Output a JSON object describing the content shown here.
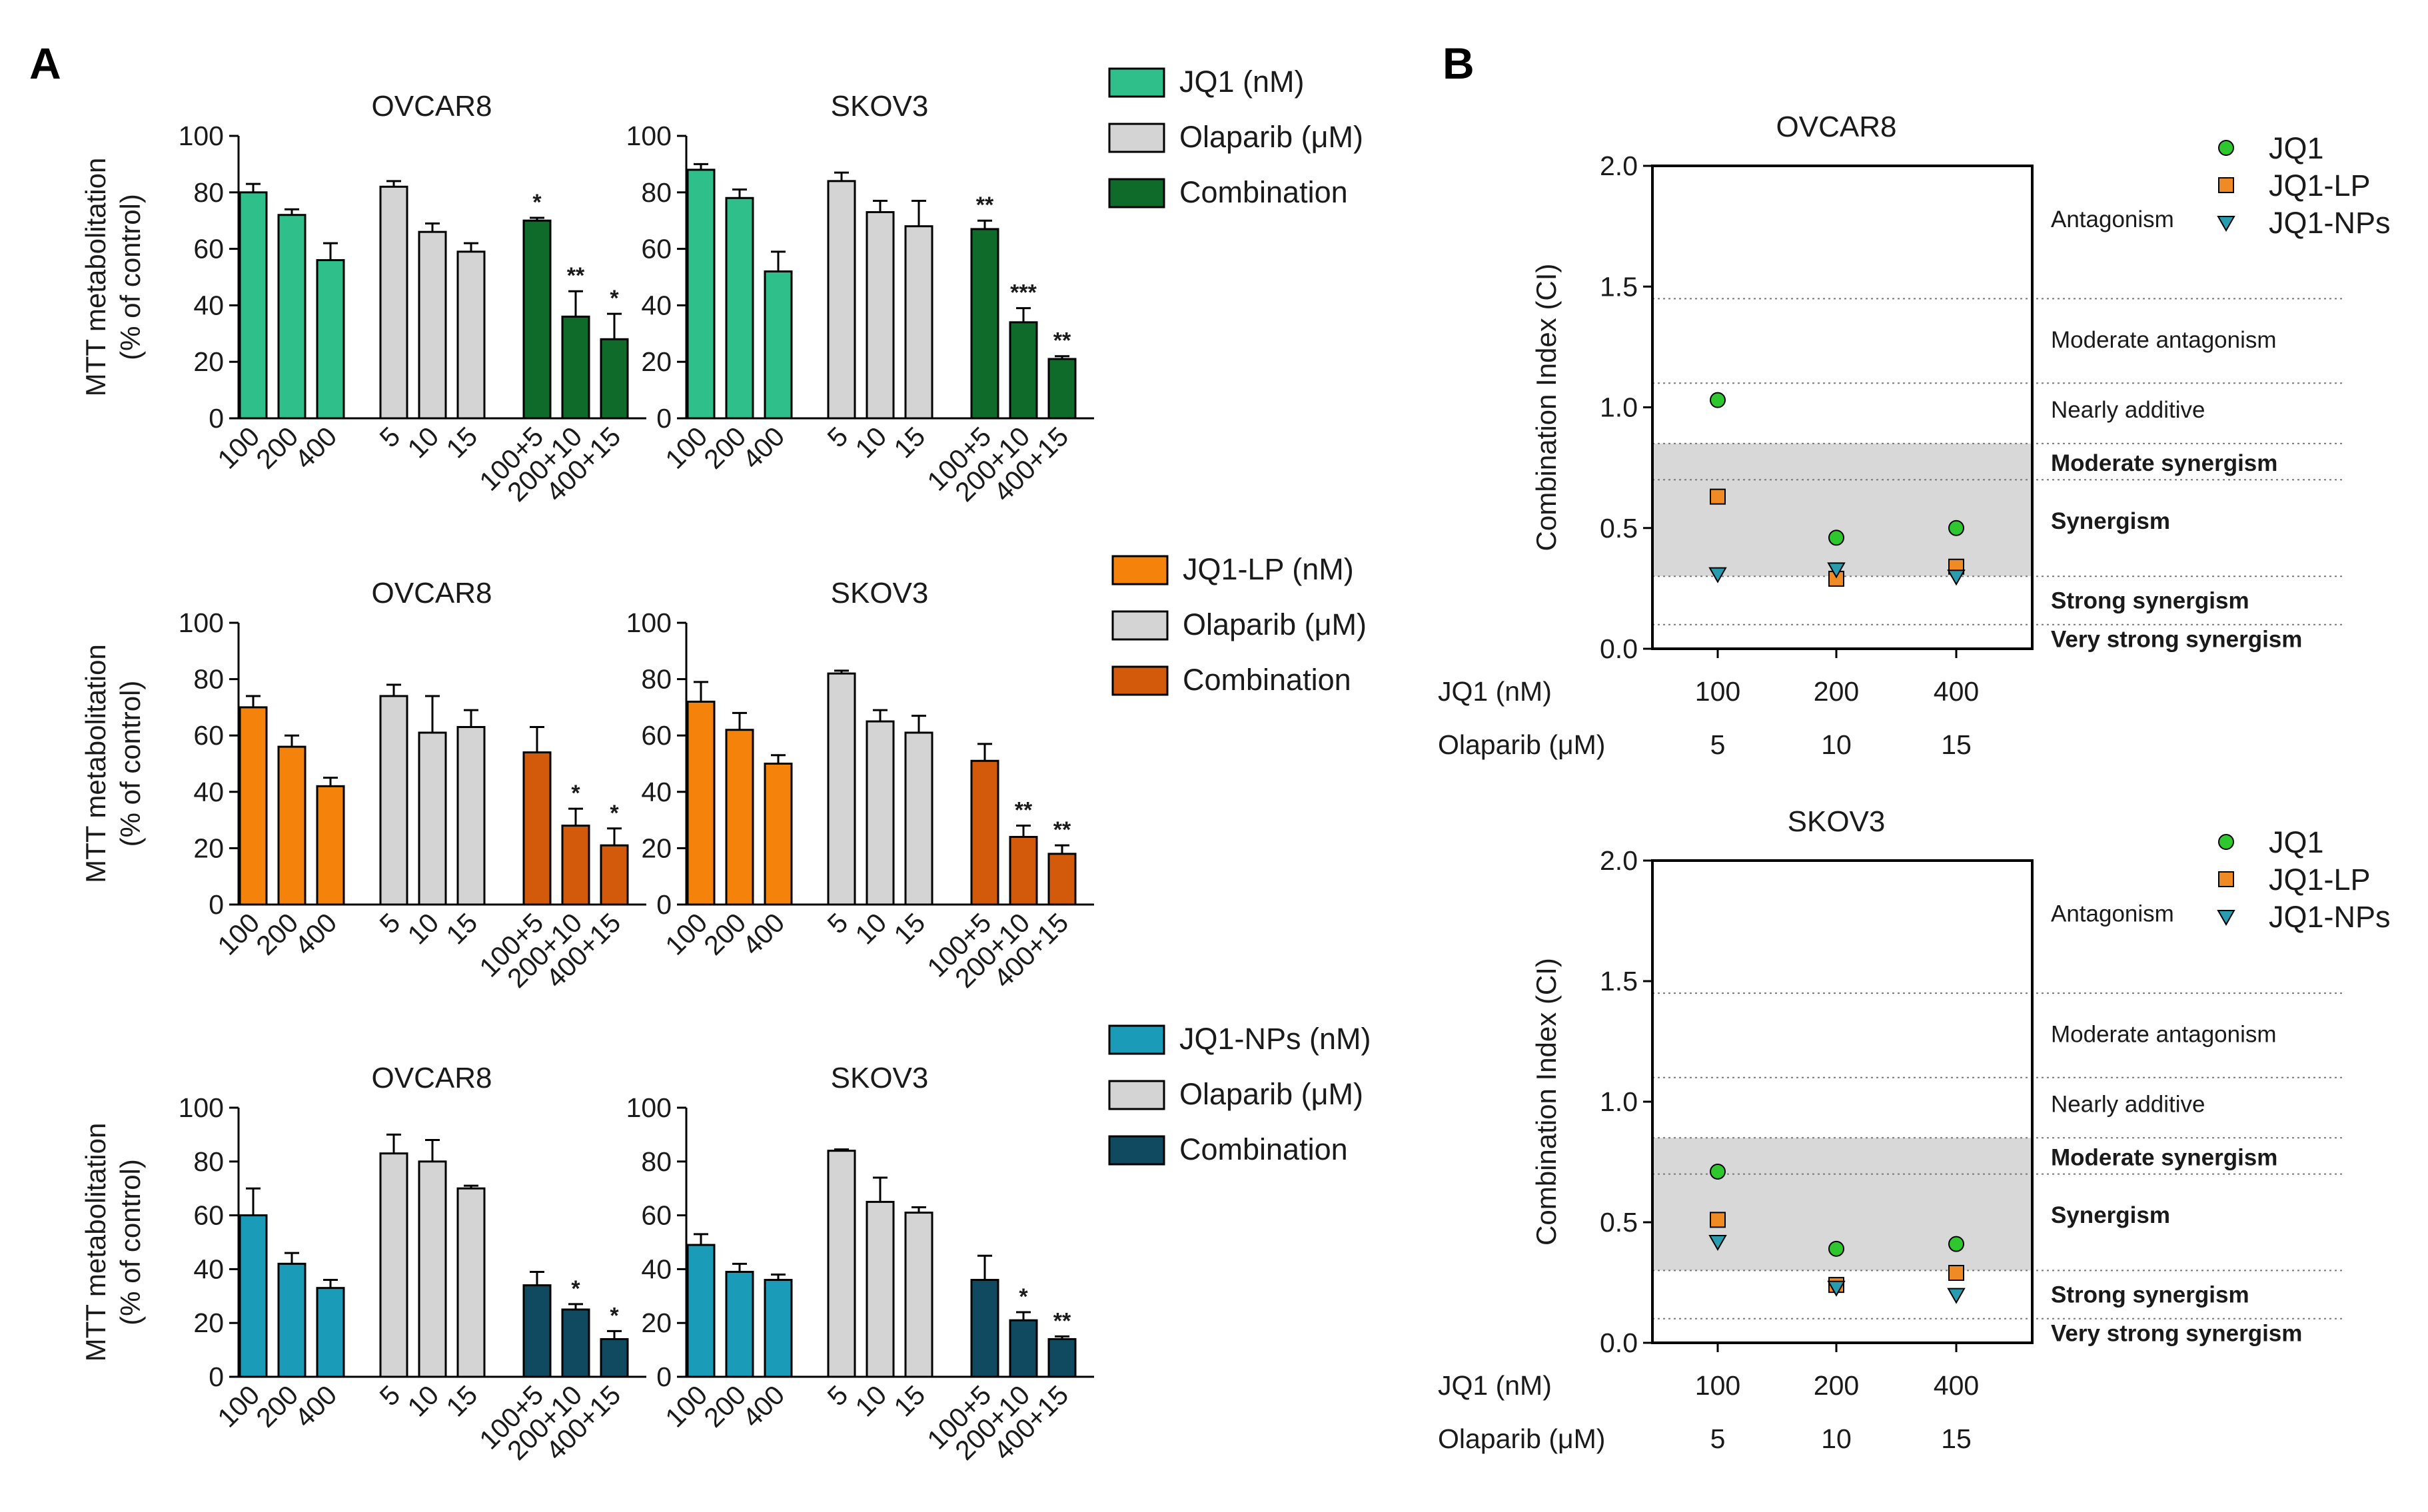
{
  "panel_labels": {
    "a": "A",
    "b": "B"
  },
  "colors": {
    "jq1": "#2ebf8b",
    "jq1_comb": "#0e6b2a",
    "lp": "#f5820a",
    "lp_comb": "#d45a0b",
    "np": "#1a9bb8",
    "np_comb": "#0f4a60",
    "olaparib": "#d4d4d4",
    "ci_jq1": "#2ec82e",
    "ci_lp": "#f08a24",
    "ci_np": "#2a9cb0",
    "ci_band": "#d8d8d8"
  },
  "chart_data": [
    {
      "type": "bar",
      "panel": "A",
      "title": "OVCAR8",
      "ylabel": "MTT metabolitation\n(% of control)",
      "ylim": [
        0,
        100
      ],
      "yticks": [
        0,
        20,
        40,
        60,
        80,
        100
      ],
      "categories": [
        "100",
        "200",
        "400",
        "5",
        "10",
        "15",
        "100+5",
        "200+10",
        "400+15"
      ],
      "groups": [
        "jq1",
        "jq1",
        "jq1",
        "olaparib",
        "olaparib",
        "olaparib",
        "jq1_comb",
        "jq1_comb",
        "jq1_comb"
      ],
      "values": [
        80,
        72,
        56,
        82,
        66,
        59,
        70,
        36,
        28
      ],
      "errors": [
        3,
        2,
        6,
        2,
        3,
        3,
        1,
        9,
        9
      ],
      "significance": [
        "",
        "",
        "",
        "",
        "",
        "",
        "*",
        "**",
        "*"
      ]
    },
    {
      "type": "bar",
      "panel": "A",
      "title": "SKOV3",
      "ylabel": "",
      "ylim": [
        0,
        100
      ],
      "yticks": [
        0,
        20,
        40,
        60,
        80,
        100
      ],
      "categories": [
        "100",
        "200",
        "400",
        "5",
        "10",
        "15",
        "100+5",
        "200+10",
        "400+15"
      ],
      "groups": [
        "jq1",
        "jq1",
        "jq1",
        "olaparib",
        "olaparib",
        "olaparib",
        "jq1_comb",
        "jq1_comb",
        "jq1_comb"
      ],
      "values": [
        88,
        78,
        52,
        84,
        73,
        68,
        67,
        34,
        21
      ],
      "errors": [
        2,
        3,
        7,
        3,
        4,
        9,
        3,
        5,
        1
      ],
      "significance": [
        "",
        "",
        "",
        "",
        "",
        "",
        "**",
        "***",
        "**"
      ]
    },
    {
      "type": "bar",
      "panel": "A",
      "title": "OVCAR8",
      "ylabel": "MTT metabolitation\n(% of control)",
      "ylim": [
        0,
        100
      ],
      "yticks": [
        0,
        20,
        40,
        60,
        80,
        100
      ],
      "categories": [
        "100",
        "200",
        "400",
        "5",
        "10",
        "15",
        "100+5",
        "200+10",
        "400+15"
      ],
      "groups": [
        "lp",
        "lp",
        "lp",
        "olaparib",
        "olaparib",
        "olaparib",
        "lp_comb",
        "lp_comb",
        "lp_comb"
      ],
      "values": [
        70,
        56,
        42,
        74,
        61,
        63,
        54,
        28,
        21
      ],
      "errors": [
        4,
        4,
        3,
        4,
        13,
        6,
        9,
        6,
        6
      ],
      "significance": [
        "",
        "",
        "",
        "",
        "",
        "",
        "",
        "*",
        "*"
      ]
    },
    {
      "type": "bar",
      "panel": "A",
      "title": "SKOV3",
      "ylabel": "",
      "ylim": [
        0,
        100
      ],
      "yticks": [
        0,
        20,
        40,
        60,
        80,
        100
      ],
      "categories": [
        "100",
        "200",
        "400",
        "5",
        "10",
        "15",
        "100+5",
        "200+10",
        "400+15"
      ],
      "groups": [
        "lp",
        "lp",
        "lp",
        "olaparib",
        "olaparib",
        "olaparib",
        "lp_comb",
        "lp_comb",
        "lp_comb"
      ],
      "values": [
        72,
        62,
        50,
        82,
        65,
        61,
        51,
        24,
        18
      ],
      "errors": [
        7,
        6,
        3,
        1,
        4,
        6,
        6,
        4,
        3
      ],
      "significance": [
        "",
        "",
        "",
        "",
        "",
        "",
        "",
        "**",
        "**"
      ]
    },
    {
      "type": "bar",
      "panel": "A",
      "title": "OVCAR8",
      "ylabel": "MTT metabolitation\n(% of control)",
      "ylim": [
        0,
        100
      ],
      "yticks": [
        0,
        20,
        40,
        60,
        80,
        100
      ],
      "categories": [
        "100",
        "200",
        "400",
        "5",
        "10",
        "15",
        "100+5",
        "200+10",
        "400+15"
      ],
      "groups": [
        "np",
        "np",
        "np",
        "olaparib",
        "olaparib",
        "olaparib",
        "np_comb",
        "np_comb",
        "np_comb"
      ],
      "values": [
        60,
        42,
        33,
        83,
        80,
        70,
        34,
        25,
        14
      ],
      "errors": [
        10,
        4,
        3,
        7,
        8,
        1,
        5,
        2,
        3
      ],
      "significance": [
        "",
        "",
        "",
        "",
        "",
        "",
        "",
        "*",
        "*"
      ]
    },
    {
      "type": "bar",
      "panel": "A",
      "title": "SKOV3",
      "ylabel": "",
      "ylim": [
        0,
        100
      ],
      "yticks": [
        0,
        20,
        40,
        60,
        80,
        100
      ],
      "categories": [
        "100",
        "200",
        "400",
        "5",
        "10",
        "15",
        "100+5",
        "200+10",
        "400+15"
      ],
      "groups": [
        "np",
        "np",
        "np",
        "olaparib",
        "olaparib",
        "olaparib",
        "np_comb",
        "np_comb",
        "np_comb"
      ],
      "values": [
        49,
        39,
        36,
        84,
        65,
        61,
        36,
        21,
        14
      ],
      "errors": [
        4,
        3,
        2,
        0.5,
        9,
        2,
        9,
        3,
        1
      ],
      "significance": [
        "",
        "",
        "",
        "",
        "",
        "",
        "",
        "*",
        "**"
      ]
    },
    {
      "type": "scatter",
      "panel": "B",
      "title": "OVCAR8",
      "ylabel": "Combination Index (CI)",
      "ylim": [
        0,
        2.0
      ],
      "yticks": [
        "0.0",
        "0.5",
        "1.0",
        "1.5",
        "2.0"
      ],
      "x_positions": [
        100,
        200,
        400
      ],
      "row_labels": [
        "JQ1 (nM)",
        "Olaparib (μM)"
      ],
      "row_values": [
        [
          "100",
          "200",
          "400"
        ],
        [
          "5",
          "10",
          "15"
        ]
      ],
      "series": [
        {
          "name": "JQ1",
          "marker": "circle",
          "values": [
            1.03,
            0.46,
            0.5
          ]
        },
        {
          "name": "JQ1-LP",
          "marker": "square",
          "values": [
            0.63,
            0.29,
            0.34
          ]
        },
        {
          "name": "JQ1-NPs",
          "marker": "triangle-down",
          "values": [
            0.31,
            0.33,
            0.3
          ]
        }
      ],
      "reference_lines": [
        0.1,
        0.3,
        0.7,
        0.85,
        1.1,
        1.45
      ],
      "shaded_band": [
        0.3,
        0.85
      ],
      "zones": [
        {
          "label": "Antagonism",
          "y": 1.78,
          "bold": false
        },
        {
          "label": "Moderate antagonism",
          "y": 1.28,
          "bold": false
        },
        {
          "label": "Nearly additive",
          "y": 0.99,
          "bold": false
        },
        {
          "label": "Moderate synergism",
          "y": 0.77,
          "bold": true
        },
        {
          "label": "Synergism",
          "y": 0.53,
          "bold": true
        },
        {
          "label": "Strong synergism",
          "y": 0.2,
          "bold": true
        },
        {
          "label": "Very strong synergism",
          "y": 0.04,
          "bold": true
        }
      ]
    },
    {
      "type": "scatter",
      "panel": "B",
      "title": "SKOV3",
      "ylabel": "Combination Index (CI)",
      "ylim": [
        0,
        2.0
      ],
      "yticks": [
        "0.0",
        "0.5",
        "1.0",
        "1.5",
        "2.0"
      ],
      "x_positions": [
        100,
        200,
        400
      ],
      "row_labels": [
        "JQ1 (nM)",
        "Olaparib (μM)"
      ],
      "row_values": [
        [
          "100",
          "200",
          "400"
        ],
        [
          "5",
          "10",
          "15"
        ]
      ],
      "series": [
        {
          "name": "JQ1",
          "marker": "circle",
          "values": [
            0.71,
            0.39,
            0.41
          ]
        },
        {
          "name": "JQ1-LP",
          "marker": "square",
          "values": [
            0.51,
            0.24,
            0.29
          ]
        },
        {
          "name": "JQ1-NPs",
          "marker": "triangle-down",
          "values": [
            0.42,
            0.23,
            0.2
          ]
        }
      ],
      "reference_lines": [
        0.1,
        0.3,
        0.7,
        0.85,
        1.1,
        1.45
      ],
      "shaded_band": [
        0.3,
        0.85
      ],
      "zones": [
        {
          "label": "Antagonism",
          "y": 1.78,
          "bold": false
        },
        {
          "label": "Moderate antagonism",
          "y": 1.28,
          "bold": false
        },
        {
          "label": "Nearly additive",
          "y": 0.99,
          "bold": false
        },
        {
          "label": "Moderate synergism",
          "y": 0.77,
          "bold": true
        },
        {
          "label": "Synergism",
          "y": 0.53,
          "bold": true
        },
        {
          "label": "Strong synergism",
          "y": 0.2,
          "bold": true
        },
        {
          "label": "Very strong synergism",
          "y": 0.04,
          "bold": true
        }
      ]
    }
  ],
  "legends": {
    "jq1": [
      {
        "label": "JQ1 (nM)",
        "color_key": "jq1"
      },
      {
        "label": "Olaparib (μM)",
        "color_key": "olaparib"
      },
      {
        "label": "Combination",
        "color_key": "jq1_comb"
      }
    ],
    "lp": [
      {
        "label": "JQ1-LP (nM)",
        "color_key": "lp"
      },
      {
        "label": "Olaparib (μM)",
        "color_key": "olaparib"
      },
      {
        "label": "Combination",
        "color_key": "lp_comb"
      }
    ],
    "np": [
      {
        "label": "JQ1-NPs (nM)",
        "color_key": "np"
      },
      {
        "label": "Olaparib (μM)",
        "color_key": "olaparib"
      },
      {
        "label": "Combination",
        "color_key": "np_comb"
      }
    ],
    "ci": [
      {
        "label": "JQ1",
        "marker": "circle",
        "color_key": "ci_jq1"
      },
      {
        "label": "JQ1-LP",
        "marker": "square",
        "color_key": "ci_lp"
      },
      {
        "label": "JQ1-NPs",
        "marker": "triangle-down",
        "color_key": "ci_np"
      }
    ]
  }
}
